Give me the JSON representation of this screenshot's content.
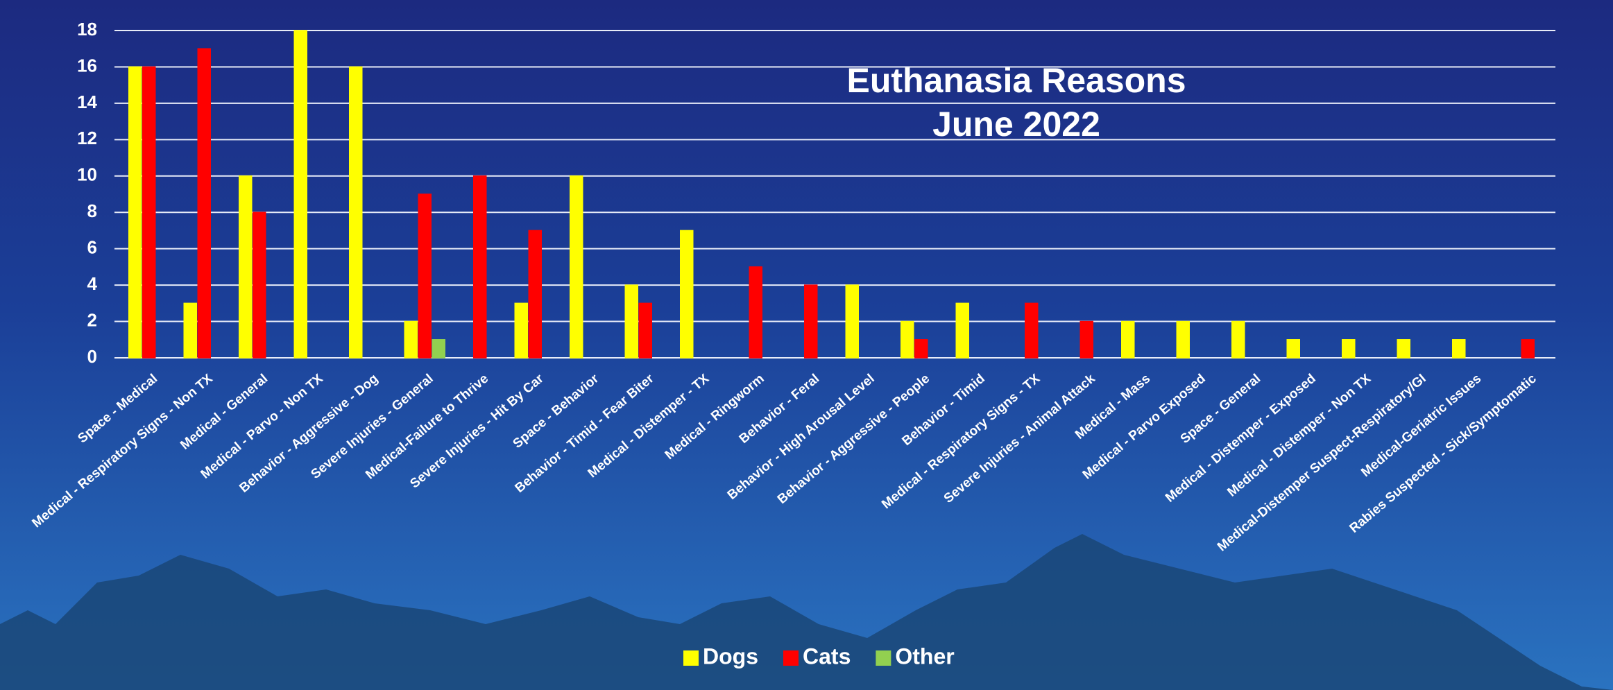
{
  "chart_data": {
    "type": "bar",
    "title": "Euthanasia Reasons",
    "subtitle": "June 2022",
    "categories": [
      "Space - Medical",
      "Medical - Respiratory Signs - Non TX",
      "Medical - General",
      "Medical - Parvo - Non TX",
      "Behavior - Aggressive - Dog",
      "Severe Injuries - General",
      "Medical-Failure to Thrive",
      "Severe Injuries - Hit By Car",
      "Space - Behavior",
      "Behavior - Timid - Fear Biter",
      "Medical - Distemper - TX",
      "Medical - Ringworm",
      "Behavior - Feral",
      "Behavior - High Arousal Level",
      "Behavior - Aggressive - People",
      "Behavior - Timid",
      "Medical - Respiratory Signs - TX",
      "Severe Injuries - Animal Attack",
      "Medical - Mass",
      "Medical - Parvo Exposed",
      "Space - General",
      "Medical - Distemper - Exposed",
      "Medical - Distemper - Non TX",
      "Medical-Distemper Suspect-Respiratory/GI",
      "Medical-Geriatric Issues",
      "Rabies Suspected - Sick/Symptomatic"
    ],
    "series": [
      {
        "name": "Dogs",
        "color": "#ffff00",
        "values": [
          16,
          3,
          10,
          18,
          16,
          2,
          0,
          3,
          10,
          4,
          7,
          0,
          0,
          4,
          2,
          3,
          0,
          0,
          2,
          2,
          2,
          1,
          1,
          1,
          1,
          0
        ]
      },
      {
        "name": "Cats",
        "color": "#ff0000",
        "values": [
          16,
          17,
          8,
          0,
          0,
          9,
          10,
          7,
          0,
          3,
          0,
          5,
          4,
          0,
          1,
          0,
          3,
          2,
          0,
          0,
          0,
          0,
          0,
          0,
          0,
          1
        ]
      },
      {
        "name": "Other",
        "color": "#92d050",
        "values": [
          0,
          0,
          0,
          0,
          0,
          1,
          0,
          0,
          0,
          0,
          0,
          0,
          0,
          0,
          0,
          0,
          0,
          0,
          0,
          0,
          0,
          0,
          0,
          0,
          0,
          0
        ]
      }
    ],
    "ylim": [
      0,
      18
    ],
    "yticks": [
      0,
      2,
      4,
      6,
      8,
      10,
      12,
      14,
      16,
      18
    ],
    "grid": true,
    "legend": "bottom"
  }
}
